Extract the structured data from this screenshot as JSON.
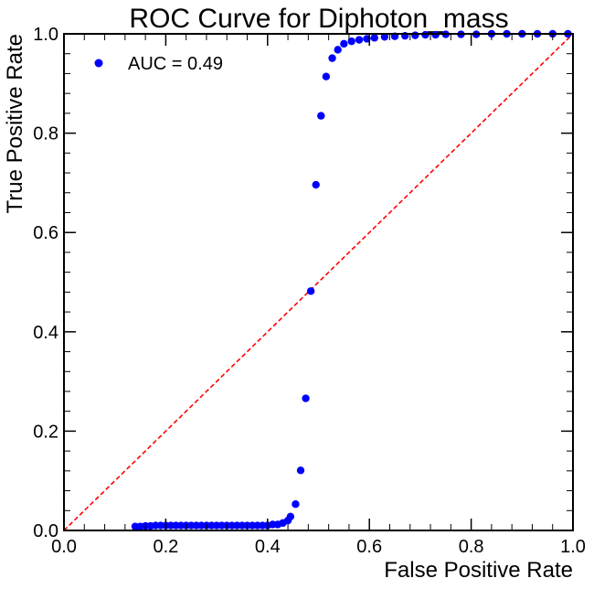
{
  "chart_data": {
    "type": "scatter",
    "title": "ROC Curve for Diphoton_mass",
    "xlabel": "False Positive Rate",
    "ylabel": "True Positive Rate",
    "xlim": [
      0.0,
      1.0
    ],
    "ylim": [
      0.0,
      1.0
    ],
    "xticks": [
      "0.0",
      "0.2",
      "0.4",
      "0.6",
      "0.8",
      "1.0"
    ],
    "yticks": [
      "0.0",
      "0.2",
      "0.4",
      "0.6",
      "0.8",
      "1.0"
    ],
    "grid": false,
    "legend_position": "top-left",
    "series": [
      {
        "name": "AUC = 0.49",
        "color": "#0000ff",
        "marker": "circle",
        "x": [
          0.14,
          0.15,
          0.16,
          0.17,
          0.18,
          0.19,
          0.2,
          0.21,
          0.22,
          0.23,
          0.24,
          0.25,
          0.26,
          0.27,
          0.28,
          0.29,
          0.3,
          0.31,
          0.32,
          0.33,
          0.34,
          0.35,
          0.36,
          0.37,
          0.38,
          0.39,
          0.4,
          0.41,
          0.42,
          0.43,
          0.44,
          0.445,
          0.455,
          0.465,
          0.475,
          0.485,
          0.495,
          0.505,
          0.515,
          0.527,
          0.538,
          0.55,
          0.565,
          0.58,
          0.595,
          0.61,
          0.63,
          0.65,
          0.67,
          0.69,
          0.71,
          0.73,
          0.75,
          0.78,
          0.81,
          0.84,
          0.87,
          0.9,
          0.93,
          0.96,
          0.99
        ],
        "y": [
          0.008,
          0.008,
          0.009,
          0.009,
          0.01,
          0.01,
          0.01,
          0.01,
          0.01,
          0.01,
          0.01,
          0.01,
          0.01,
          0.01,
          0.01,
          0.01,
          0.01,
          0.01,
          0.01,
          0.01,
          0.01,
          0.01,
          0.01,
          0.01,
          0.01,
          0.01,
          0.01,
          0.012,
          0.012,
          0.015,
          0.02,
          0.028,
          0.053,
          0.121,
          0.266,
          0.482,
          0.696,
          0.835,
          0.914,
          0.951,
          0.968,
          0.98,
          0.985,
          0.988,
          0.99,
          0.992,
          0.994,
          0.995,
          0.996,
          0.997,
          0.998,
          0.998,
          0.999,
          0.999,
          0.999,
          1.0,
          1.0,
          1.0,
          1.0,
          1.0,
          1.0
        ]
      }
    ],
    "reference_line": {
      "color": "#ff0000",
      "style": "dashed",
      "x": [
        0,
        1
      ],
      "y": [
        0,
        1
      ]
    }
  }
}
